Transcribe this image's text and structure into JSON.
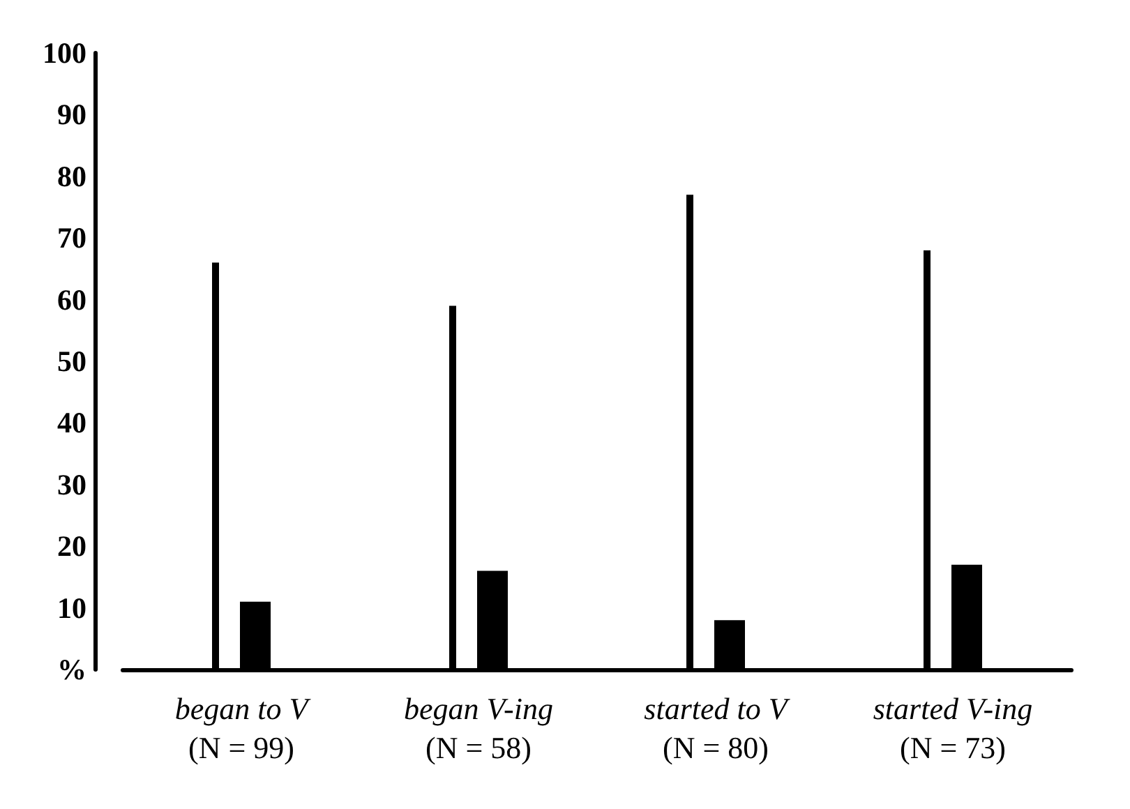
{
  "chart_data": {
    "type": "bar",
    "categories": [
      "began to V\n(N = 99)",
      "began V-ing\n(N = 58)",
      "started to V\n(N = 80)",
      "started V-ing\n(N = 73)"
    ],
    "series": [
      {
        "color": "#000000",
        "values": [
          66,
          59,
          77,
          68
        ]
      },
      {
        "color": "#000000",
        "values": [
          11,
          16,
          8,
          17
        ]
      }
    ],
    "ylim": [
      0,
      100
    ],
    "yticks": [
      {
        "value": 0,
        "label": "%"
      },
      10,
      20,
      30,
      40,
      50,
      60,
      70,
      80,
      90,
      100
    ],
    "grid": false
  }
}
